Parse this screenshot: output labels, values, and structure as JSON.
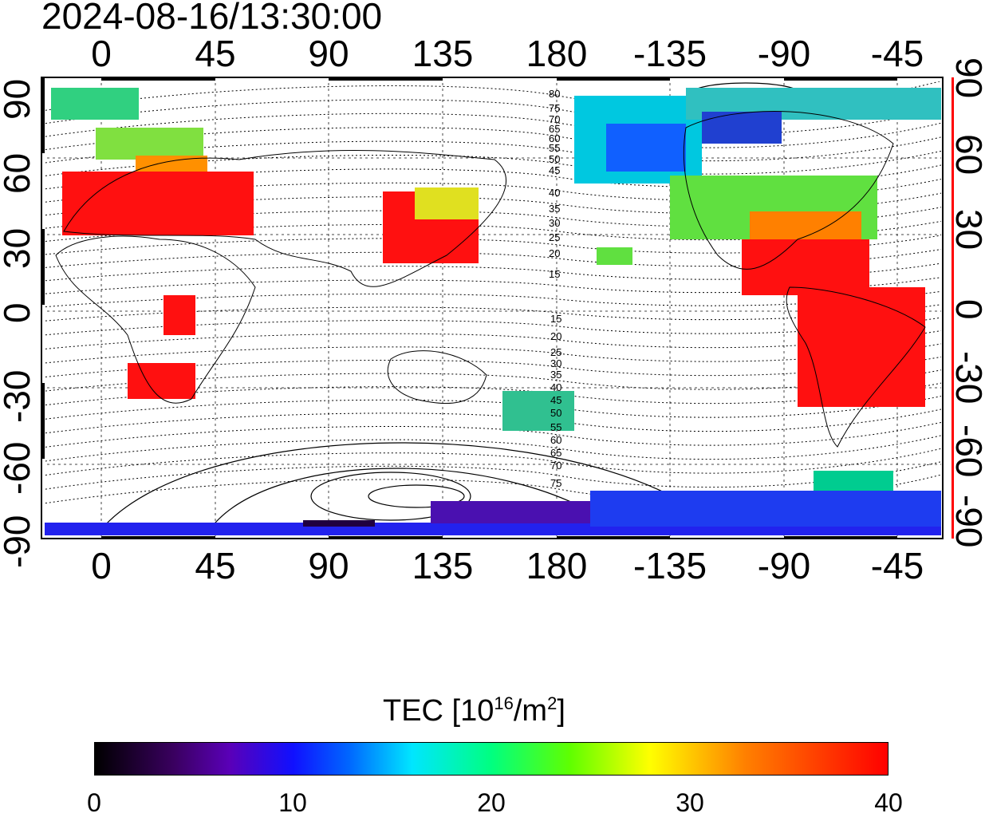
{
  "title": "2024-08-16/13:30:00",
  "map": {
    "lon_ticks": [
      "0",
      "45",
      "90",
      "135",
      "180",
      "-135",
      "-90",
      "-45"
    ],
    "lat_ticks": [
      "90",
      "60",
      "30",
      "0",
      "-30",
      "-60",
      "-90"
    ],
    "mag_lat_labels_north": [
      "80",
      "75",
      "70",
      "65",
      "60",
      "55",
      "50",
      "45",
      "40",
      "35",
      "30",
      "25",
      "20",
      "15"
    ],
    "mag_lat_labels_south": [
      "15",
      "20",
      "25",
      "30",
      "35",
      "40",
      "45",
      "50",
      "55",
      "60",
      "65",
      "70",
      "75"
    ],
    "colors": {
      "frame": "#000000",
      "right_axis_marker": "#ff0000",
      "grid": "#333333"
    }
  },
  "colorbar": {
    "title_main": "TEC  [10",
    "title_exp1": "16",
    "title_mid": "/m",
    "title_exp2": "2",
    "title_end": "]",
    "ticks": [
      "0",
      "10",
      "20",
      "30",
      "40"
    ],
    "min": 0,
    "max": 40,
    "colors": [
      "#000000",
      "#3a0060",
      "#1010ff",
      "#00e6ff",
      "#00ff80",
      "#ffff00",
      "#ff0000"
    ]
  }
}
